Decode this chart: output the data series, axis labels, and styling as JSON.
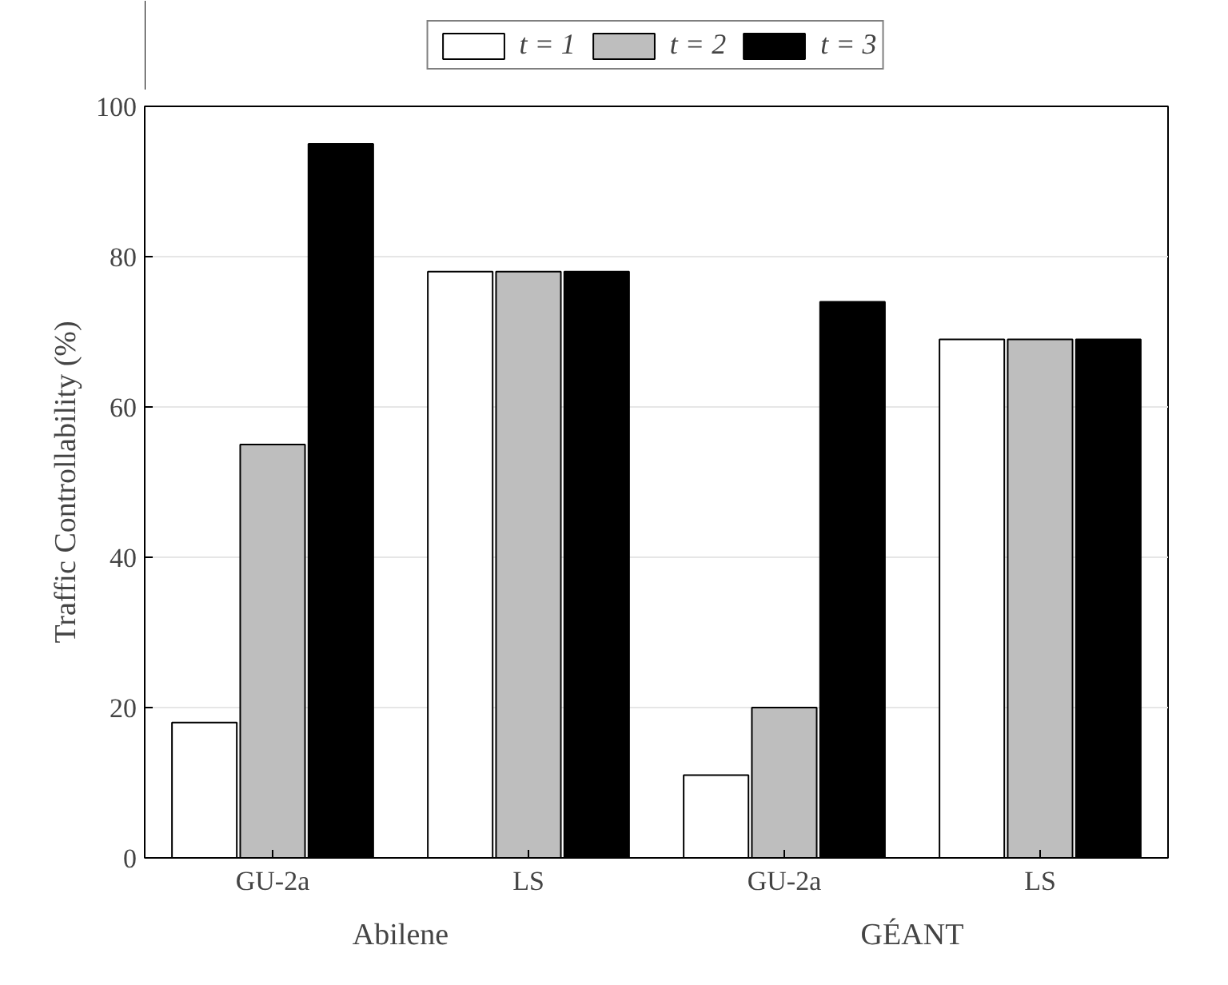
{
  "chart_data": {
    "type": "bar",
    "ylabel": "Traffic Controllability (%)",
    "categories": [
      "GU-2a",
      "LS",
      "GU-2a",
      "LS"
    ],
    "series": [
      {
        "name": "t = 1",
        "color": "#ffffff",
        "values": [
          18,
          78,
          11,
          69
        ]
      },
      {
        "name": "t = 2",
        "color": "#bebebe",
        "values": [
          55,
          78,
          20,
          69
        ]
      },
      {
        "name": "t = 3",
        "color": "#000000",
        "values": [
          95,
          78,
          74,
          69
        ]
      }
    ],
    "ylim": [
      0,
      100
    ],
    "yticks": [
      0,
      20,
      40,
      60,
      80,
      100
    ],
    "grid": "y",
    "legend": "top",
    "annotations": [
      "Abilene",
      "GÉANT"
    ]
  }
}
